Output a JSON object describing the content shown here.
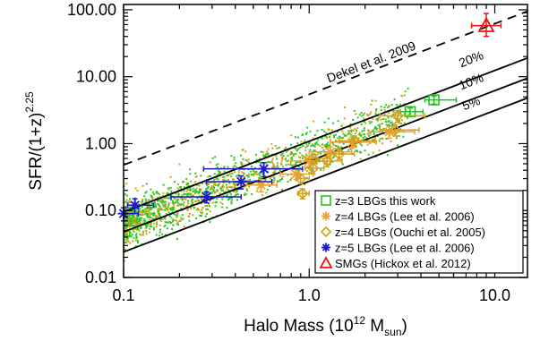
{
  "chart_data": {
    "type": "scatter",
    "xscale": "log",
    "yscale": "log",
    "xlim": [
      0.1,
      15
    ],
    "ylim": [
      0.01,
      120
    ],
    "xticks": [
      {
        "v": 0.1,
        "label": "0.1"
      },
      {
        "v": 1,
        "label": "1.0"
      },
      {
        "v": 10,
        "label": "10.0"
      }
    ],
    "yticks": [
      {
        "v": 0.01,
        "label": "0.01"
      },
      {
        "v": 0.1,
        "label": "0.10"
      },
      {
        "v": 1,
        "label": "1.00"
      },
      {
        "v": 10,
        "label": "10.00"
      },
      {
        "v": 100,
        "label": "100.00"
      }
    ],
    "xlabel": {
      "pre": "Halo Mass (10",
      "sup": "12",
      "mid": " M",
      "sub": "sun",
      "post": ")"
    },
    "ylabel": {
      "base": "SFR/(1+z)",
      "sup": "2.25"
    },
    "lines": [
      {
        "name": "Dekel et al. 2009",
        "style": "dashed",
        "x": [
          0.1,
          15
        ],
        "y": [
          0.48,
          95
        ]
      },
      {
        "name": "20%",
        "style": "solid",
        "x": [
          0.1,
          15
        ],
        "y": [
          0.095,
          19
        ]
      },
      {
        "name": "10%",
        "style": "solid",
        "x": [
          0.1,
          15
        ],
        "y": [
          0.048,
          9.5
        ]
      },
      {
        "name": "5%",
        "style": "solid",
        "x": [
          0.1,
          15
        ],
        "y": [
          0.024,
          4.8
        ]
      }
    ],
    "line_labels": [
      {
        "text": "Dekel et al. 2009",
        "x": 2.2,
        "y": 14.5,
        "angle": -21
      },
      {
        "text": "20%",
        "x": 7.6,
        "y": 16,
        "angle": -21
      },
      {
        "text": "10%",
        "x": 7.6,
        "y": 7.4,
        "angle": -21
      },
      {
        "text": "5%",
        "x": 7.6,
        "y": 3.5,
        "angle": -21
      }
    ],
    "cloud": {
      "name": "model galaxies",
      "colors": [
        "#22cc22",
        "#d4a017"
      ],
      "x_range": [
        0.1,
        3.5
      ],
      "relation_y_at_x1": 0.72,
      "slope": 1.05,
      "scatter_dex": 0.17
    },
    "series": [
      {
        "name": "z=3 LBGs this work",
        "marker": "square",
        "color": "#22c422",
        "points": [
          {
            "x": 3.5,
            "y": 3.0,
            "xerr": [
              0.4,
              0.6
            ],
            "yerr": [
              0.4,
              0.4
            ]
          },
          {
            "x": 4.7,
            "y": 4.5,
            "xerr": [
              0.5,
              1.5
            ],
            "yerr": [
              0.6,
              0.6
            ]
          }
        ]
      },
      {
        "name": "z=4 LBGs (Lee et al. 2006)",
        "marker": "asterisk",
        "color": "#f0a030",
        "points": [
          {
            "x": 0.55,
            "y": 0.24,
            "xerr": [
              0.1,
              0.12
            ],
            "yerr": [
              0.05,
              0.05
            ]
          },
          {
            "x": 0.85,
            "y": 0.35,
            "xerr": [
              0.15,
              0.2
            ],
            "yerr": [
              0.06,
              0.06
            ]
          },
          {
            "x": 1.0,
            "y": 0.55,
            "xerr": [
              0.2,
              0.3
            ],
            "yerr": [
              0.1,
              0.1
            ]
          },
          {
            "x": 1.3,
            "y": 0.75,
            "xerr": [
              0.3,
              0.4
            ],
            "yerr": [
              0.15,
              0.15
            ]
          },
          {
            "x": 1.7,
            "y": 1.05,
            "xerr": [
              0.4,
              0.6
            ],
            "yerr": [
              0.2,
              0.2
            ]
          },
          {
            "x": 2.7,
            "y": 1.5,
            "xerr": [
              0.6,
              1.0
            ],
            "yerr": [
              0.3,
              0.3
            ]
          }
        ]
      },
      {
        "name": "z=4 LBGs (Ouchi et al. 2005)",
        "marker": "diamond",
        "color": "#d4a017",
        "points": [
          {
            "x": 0.92,
            "y": 0.18,
            "xerr": [
              0.05,
              0.08
            ],
            "yerr": [
              0.03,
              0.03
            ]
          },
          {
            "x": 0.9,
            "y": 0.3,
            "xerr": [
              0.05,
              0.1
            ],
            "yerr": [
              0.05,
              0.05
            ]
          },
          {
            "x": 1.05,
            "y": 0.43,
            "xerr": [
              0.1,
              0.15
            ],
            "yerr": [
              0.08,
              0.08
            ]
          },
          {
            "x": 1.05,
            "y": 0.6,
            "xerr": [
              0.1,
              0.2
            ],
            "yerr": [
              0.1,
              0.1
            ]
          },
          {
            "x": 1.25,
            "y": 0.55,
            "xerr": [
              0.15,
              0.25
            ],
            "yerr": [
              0.1,
              0.1
            ]
          },
          {
            "x": 1.45,
            "y": 0.7,
            "xerr": [
              0.2,
              0.3
            ],
            "yerr": [
              0.12,
              0.12
            ]
          },
          {
            "x": 1.75,
            "y": 1.1,
            "xerr": [
              0.3,
              0.5
            ],
            "yerr": [
              0.2,
              0.2
            ]
          },
          {
            "x": 2.9,
            "y": 1.6,
            "xerr": [
              0.5,
              1.0
            ],
            "yerr": [
              0.3,
              0.3
            ]
          },
          {
            "x": 3.0,
            "y": 2.6,
            "xerr": [
              0.6,
              1.2
            ],
            "yerr": [
              0.5,
              0.5
            ]
          }
        ]
      },
      {
        "name": "z=5 LBGs (Lee et al. 2006)",
        "marker": "asterisk",
        "color": "#1a1acc",
        "points": [
          {
            "x": 0.1,
            "y": 0.09,
            "xerr": [
              0.0,
              0.02
            ],
            "yerr": [
              0.02,
              0.02
            ]
          },
          {
            "x": 0.115,
            "y": 0.12,
            "xerr": [
              0.01,
              0.03
            ],
            "yerr": [
              0.03,
              0.03
            ]
          },
          {
            "x": 0.28,
            "y": 0.16,
            "xerr": [
              0.1,
              0.15
            ],
            "yerr": [
              0.03,
              0.03
            ]
          },
          {
            "x": 0.43,
            "y": 0.27,
            "xerr": [
              0.15,
              0.2
            ],
            "yerr": [
              0.06,
              0.06
            ]
          },
          {
            "x": 0.57,
            "y": 0.42,
            "xerr": [
              0.3,
              0.35
            ],
            "yerr": [
              0.1,
              0.1
            ]
          }
        ]
      },
      {
        "name": "SMGs (Hickox et al. 2012)",
        "marker": "triangle",
        "color": "#ee1111",
        "points": [
          {
            "x": 9.0,
            "y": 58,
            "xerr": [
              1.5,
              1.8
            ],
            "yerr": [
              18,
              30
            ]
          }
        ]
      }
    ],
    "legend": {
      "position": "lower-right",
      "items": [
        {
          "label": "z=3 LBGs this work",
          "marker": "square",
          "color": "#22c422"
        },
        {
          "label": "z=4 LBGs (Lee et al. 2006)",
          "marker": "asterisk",
          "color": "#f0a030"
        },
        {
          "label": "z=4 LBGs (Ouchi et al. 2005)",
          "marker": "diamond",
          "color": "#d4a017"
        },
        {
          "label": "z=5 LBGs (Lee et al. 2006)",
          "marker": "asterisk",
          "color": "#1a1acc"
        },
        {
          "label": "SMGs (Hickox et al. 2012)",
          "marker": "triangle",
          "color": "#ee1111"
        }
      ]
    }
  }
}
